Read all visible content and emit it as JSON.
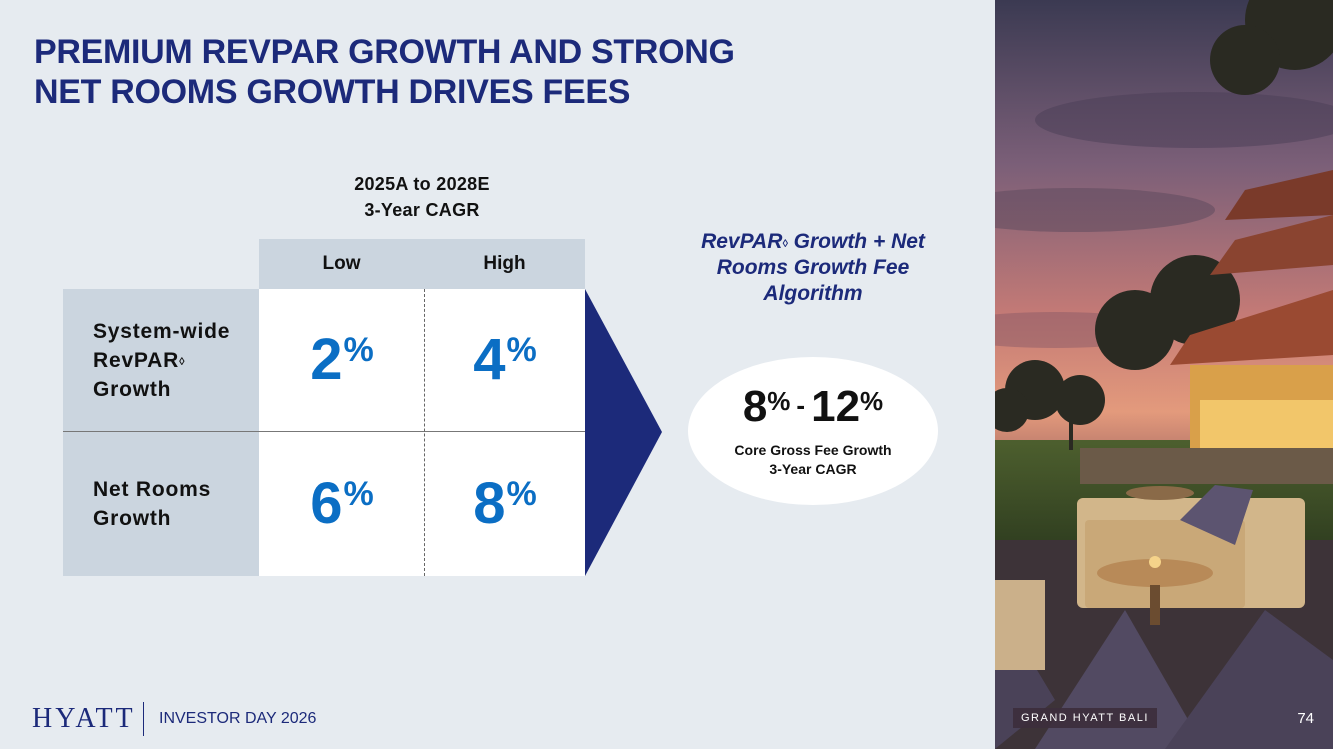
{
  "title": {
    "line1": "PREMIUM REVPAR GROWTH AND STRONG",
    "line2": "NET ROOMS GROWTH DRIVES FEES"
  },
  "table": {
    "header": {
      "line1": "2025A to 2028E",
      "line2": "3-Year CAGR"
    },
    "columns": [
      "Low",
      "High"
    ],
    "rows": [
      {
        "label_lines": [
          "System-wide",
          "RevPAR",
          "Growth"
        ],
        "label_mark": "◊",
        "values": [
          "2",
          "4"
        ]
      },
      {
        "label_lines": [
          "Net Rooms",
          "Growth"
        ],
        "values": [
          "6",
          "8"
        ]
      }
    ],
    "percent_sign": "%"
  },
  "algorithm": {
    "line1_a": "RevPAR",
    "mark": "◊",
    "line1_b": " Growth + Net",
    "line2": "Rooms Growth Fee",
    "line3": "Algorithm"
  },
  "result": {
    "low": "8",
    "dash": "-",
    "high": "12",
    "percent_sign": "%",
    "sub1": "Core Gross Fee Growth",
    "sub2": "3-Year CAGR"
  },
  "footer": {
    "logo": "HYATT",
    "event": "INVESTOR DAY 2026"
  },
  "photo": {
    "caption": "GRAND HYATT BALI"
  },
  "page_number": "74",
  "colors": {
    "navy": "#1c2a7a",
    "blue_value": "#0b6ec4",
    "panel": "#cbd5df",
    "background": "#e6ebf0"
  }
}
